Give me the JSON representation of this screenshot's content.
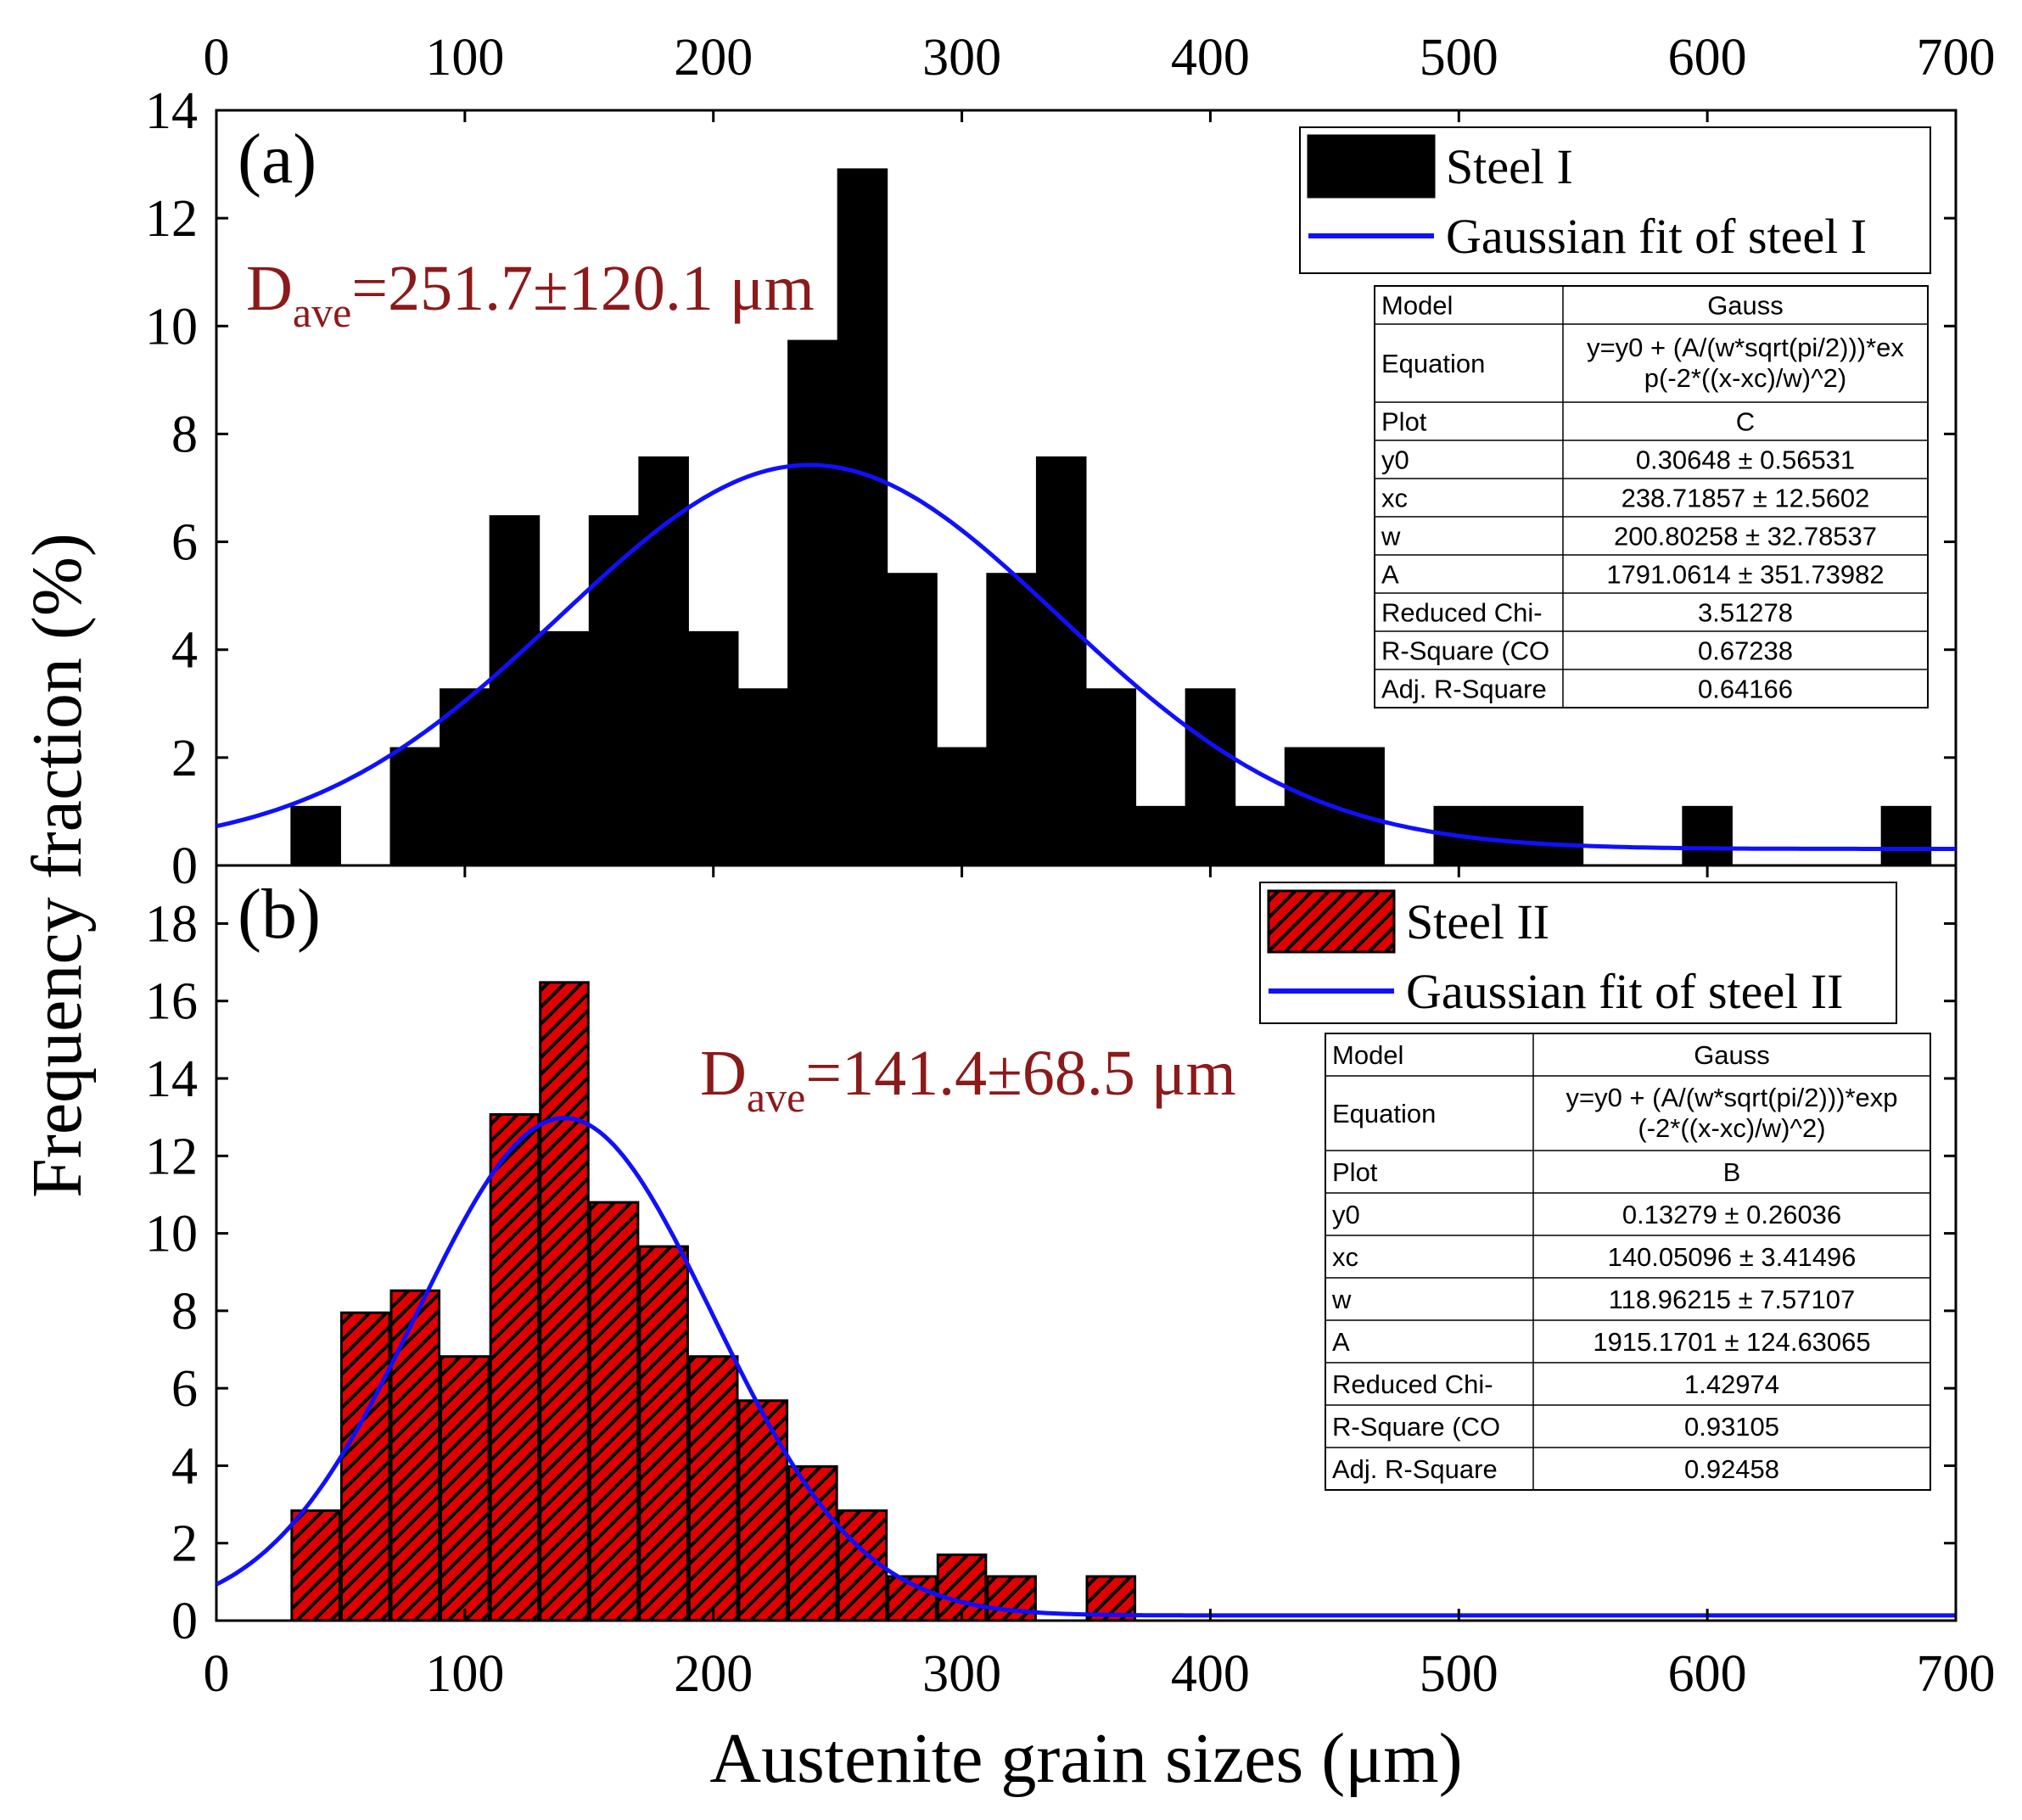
{
  "x_axis": {
    "label": "Austenite grain sizes (μm)",
    "ticks": [
      "0",
      "100",
      "200",
      "300",
      "400",
      "500",
      "600",
      "700"
    ],
    "range": [
      0,
      700
    ]
  },
  "y_axis_label": "Frequency fraction (%)",
  "colors": {
    "bar_a": "#000000",
    "bar_b": "#e00000",
    "fit": "#1010ff",
    "annotation": "#8b1a1a"
  },
  "chart_data": [
    {
      "panel": "(a)",
      "type": "bar",
      "ylim": [
        0,
        14
      ],
      "yticks": [
        "0",
        "2",
        "4",
        "6",
        "8",
        "10",
        "12",
        "14"
      ],
      "bin_width": 20,
      "bin_centers": [
        40,
        60,
        80,
        100,
        120,
        140,
        160,
        180,
        200,
        220,
        240,
        260,
        280,
        300,
        320,
        340,
        360,
        380,
        400,
        420,
        440,
        460,
        480,
        500,
        520,
        540,
        560,
        580,
        600,
        620,
        640,
        660,
        680
      ],
      "values": [
        1.08,
        0,
        2.17,
        3.26,
        6.47,
        4.32,
        6.47,
        7.56,
        4.32,
        3.26,
        9.72,
        12.9,
        5.4,
        2.17,
        5.4,
        7.56,
        3.26,
        1.08,
        3.26,
        1.08,
        2.17,
        2.17,
        0,
        1.08,
        1.08,
        1.08,
        0,
        0,
        1.08,
        0,
        0,
        0,
        1.08
      ],
      "annotation_main": "D",
      "annotation_sub": "ave",
      "annotation_value": "=251.7±120.1 μm",
      "legend": [
        "Steel I",
        "Gaussian fit of steel I"
      ],
      "fit": {
        "y0": 0.30648,
        "xc": 238.71857,
        "w": 200.80258,
        "A": 1791.0614
      },
      "stats_table": [
        [
          "Model",
          "Gauss"
        ],
        [
          "Equation",
          "y=y0 + (A/(w*sqrt(pi/2)))*ex",
          "p(-2*((x-xc)/w)^2)"
        ],
        [
          "Plot",
          "C"
        ],
        [
          "y0",
          "0.30648 ± 0.56531"
        ],
        [
          "xc",
          "238.71857 ± 12.5602"
        ],
        [
          "w",
          "200.80258 ± 32.78537"
        ],
        [
          "A",
          "1791.0614 ± 351.73982"
        ],
        [
          "Reduced Chi-",
          "3.51278"
        ],
        [
          "R-Square (CO",
          "0.67238"
        ],
        [
          "Adj. R-Square",
          "0.64166"
        ]
      ]
    },
    {
      "panel": "(b)",
      "type": "bar",
      "ylim": [
        0,
        19.5
      ],
      "yticks": [
        "0",
        "2",
        "4",
        "6",
        "8",
        "10",
        "12",
        "14",
        "16",
        "18"
      ],
      "bin_width": 20,
      "bin_centers": [
        40,
        60,
        80,
        100,
        120,
        140,
        160,
        180,
        200,
        220,
        240,
        260,
        280,
        300,
        320,
        340,
        360
      ],
      "values": [
        2.84,
        7.95,
        8.52,
        6.82,
        13.07,
        16.48,
        10.8,
        9.66,
        6.82,
        5.68,
        3.98,
        2.84,
        1.14,
        1.7,
        1.14,
        0,
        1.14
      ],
      "annotation_main": "D",
      "annotation_sub": "ave",
      "annotation_value": "=141.4±68.5 μm",
      "legend": [
        "Steel II",
        "Gaussian fit of steel II"
      ],
      "fit": {
        "y0": 0.13279,
        "xc": 140.05096,
        "w": 118.96215,
        "A": 1915.1701
      },
      "stats_table": [
        [
          "Model",
          "Gauss"
        ],
        [
          "Equation",
          "y=y0 + (A/(w*sqrt(pi/2)))*exp",
          "(-2*((x-xc)/w)^2)"
        ],
        [
          "Plot",
          "B"
        ],
        [
          "y0",
          "0.13279 ± 0.26036"
        ],
        [
          "xc",
          "140.05096 ± 3.41496"
        ],
        [
          "w",
          "118.96215 ± 7.57107"
        ],
        [
          "A",
          "1915.1701 ± 124.63065"
        ],
        [
          "Reduced Chi-",
          "1.42974"
        ],
        [
          "R-Square (CO",
          "0.93105"
        ],
        [
          "Adj. R-Square",
          "0.92458"
        ]
      ]
    }
  ]
}
